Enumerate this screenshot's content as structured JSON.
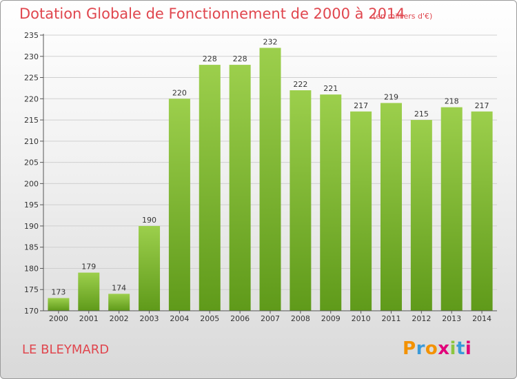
{
  "header": {
    "title": "Dotation Globale de Fonctionnement de 2000 à 2014",
    "unit_note": "(en milliers d'€)"
  },
  "footer": {
    "commune": "LE BLEYMARD",
    "logo_text": "Proxiti"
  },
  "colors": {
    "title": "#e0464e",
    "bar_top": "#9ccf4c",
    "bar_bottom": "#5f9a1a",
    "axis": "#555555",
    "grid": "#cfcfcf"
  },
  "chart_data": {
    "type": "bar",
    "categories": [
      "2000",
      "2001",
      "2002",
      "2003",
      "2004",
      "2005",
      "2006",
      "2007",
      "2008",
      "2009",
      "2010",
      "2011",
      "2012",
      "2013",
      "2014"
    ],
    "values": [
      173,
      179,
      174,
      190,
      220,
      228,
      228,
      232,
      222,
      221,
      217,
      219,
      215,
      218,
      217
    ],
    "ylim": [
      170,
      235
    ],
    "yticks": [
      170,
      175,
      180,
      185,
      190,
      195,
      200,
      205,
      210,
      215,
      220,
      225,
      230,
      235
    ],
    "grid": "horizontal",
    "data_labels": true
  }
}
